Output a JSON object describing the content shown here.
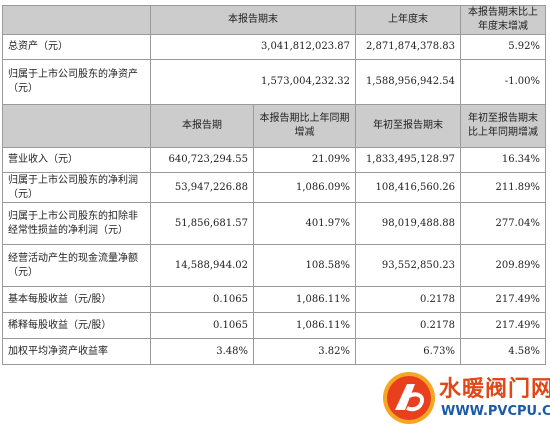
{
  "header1": [
    "本报告期末",
    "上年度末",
    "本报告期末比上年度末增减"
  ],
  "section1": [
    {
      "label": "总资产（元）",
      "current": "3,041,812,023.87",
      "prior": "2,871,874,378.83",
      "change": "5.92%"
    },
    {
      "label": "归属于上市公司股东的净资产（元）",
      "current": "1,573,004,232.32",
      "prior": "1,588,956,942.54",
      "change": "-1.00%"
    }
  ],
  "header2": [
    "本报告期",
    "本报告期比上年同期增减",
    "年初至报告期末",
    "年初至报告期末比上年同期增减"
  ],
  "section2": [
    {
      "label": "营业收入（元）",
      "period": "640,723,294.55",
      "period_change": "21.09%",
      "ytd": "1,833,495,128.97",
      "ytd_change": "16.34%"
    },
    {
      "label": "归属于上市公司股东的净利润（元）",
      "period": "53,947,226.88",
      "period_change": "1,086.09%",
      "ytd": "108,416,560.26",
      "ytd_change": "211.89%"
    },
    {
      "label": "归属于上市公司股东的扣除非经常性损益的净利润（元）",
      "period": "51,856,681.57",
      "period_change": "401.97%",
      "ytd": "98,019,488.88",
      "ytd_change": "277.04%"
    },
    {
      "label": "经营活动产生的现金流量净额（元）",
      "period": "14,588,944.02",
      "period_change": "108.58%",
      "ytd": "93,552,850.23",
      "ytd_change": "209.89%"
    },
    {
      "label": "基本每股收益（元/股）",
      "period": "0.1065",
      "period_change": "1,086.11%",
      "ytd": "0.2178",
      "ytd_change": "217.49%"
    },
    {
      "label": "稀释每股收益（元/股）",
      "period": "0.1065",
      "period_change": "1,086.11%",
      "ytd": "0.2178",
      "ytd_change": "217.49%"
    },
    {
      "label": "加权平均净资产收益率",
      "period": "3.48%",
      "period_change": "3.82%",
      "ytd": "6.73%",
      "ytd_change": "4.58%"
    }
  ],
  "watermark": {
    "title": "水暖阀门网",
    "url": "WWW.PVCPU.COM",
    "brand_color": "#e04818",
    "url_color": "#1a5aa8"
  }
}
